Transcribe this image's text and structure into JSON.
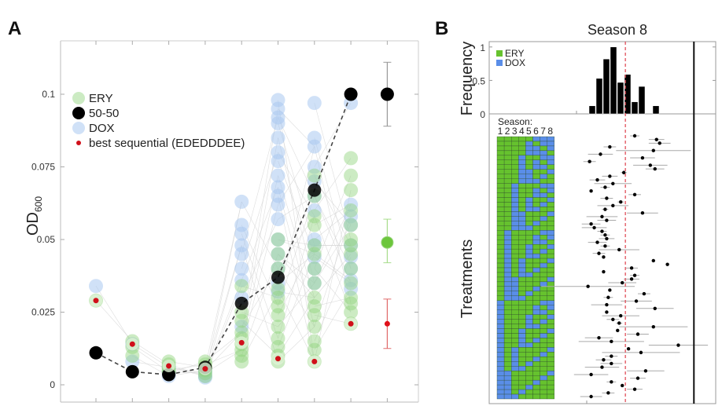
{
  "chart_data": [
    {
      "panel": "A",
      "type": "scatter",
      "ylabel": "OD",
      "ylabel_sub": "600",
      "yticks": [
        "0",
        "0.025",
        "0.05",
        "0.075",
        "0.1"
      ],
      "ytick_values": [
        0,
        0.025,
        0.05,
        0.075,
        0.1
      ],
      "ylim": [
        -0.003,
        0.12
      ],
      "n_positions": 9,
      "colors": {
        "ery": "#8fd37a",
        "dox": "#a9c8f0",
        "fifty": "#000000",
        "best": "#d0101a",
        "grey_line": "#cfcfcf"
      },
      "legend": [
        {
          "key": "ery",
          "label": "ERY"
        },
        {
          "key": "fifty",
          "label": "50-50"
        },
        {
          "key": "dox",
          "label": "DOX"
        },
        {
          "key": "best",
          "label": "best sequential (EDEDDDEE)"
        }
      ],
      "fifty_fifty": [
        0.011,
        0.0045,
        0.0035,
        0.006,
        0.028,
        0.037,
        0.067,
        0.1
      ],
      "best_sequential": [
        0.029,
        0.014,
        0.0065,
        0.0055,
        0.0145,
        0.009,
        0.008,
        0.021
      ],
      "ery_points": [
        [
          0.029
        ],
        [
          0.015,
          0.013,
          0.01
        ],
        [
          0.008,
          0.007,
          0.006,
          0.005,
          0.0045
        ],
        [
          0.008,
          0.007,
          0.006,
          0.005,
          0.004,
          0.003
        ],
        [
          0.034,
          0.025,
          0.022,
          0.018,
          0.016,
          0.014,
          0.012,
          0.01,
          0.008
        ],
        [
          0.05,
          0.045,
          0.04,
          0.033,
          0.03,
          0.027,
          0.024,
          0.02,
          0.016,
          0.013,
          0.01,
          0.008
        ],
        [
          0.072,
          0.065,
          0.058,
          0.055,
          0.048,
          0.045,
          0.04,
          0.035,
          0.03,
          0.027,
          0.024,
          0.02,
          0.015,
          0.012,
          0.008
        ],
        [
          0.078,
          0.072,
          0.067,
          0.06,
          0.055,
          0.05,
          0.048,
          0.045,
          0.04,
          0.035,
          0.03,
          0.028,
          0.025,
          0.021
        ]
      ],
      "dox_points": [
        [
          0.034
        ],
        [
          0.014,
          0.008
        ],
        [
          0.006,
          0.004,
          0.003
        ],
        [
          0.005,
          0.004,
          0.003,
          0.0025
        ],
        [
          0.063,
          0.055,
          0.052,
          0.048,
          0.045,
          0.04,
          0.036,
          0.03,
          0.02
        ],
        [
          0.098,
          0.095,
          0.092,
          0.09,
          0.085,
          0.08,
          0.077,
          0.072,
          0.068,
          0.065,
          0.062,
          0.057,
          0.05,
          0.045,
          0.04,
          0.035,
          0.032
        ],
        [
          0.097,
          0.085,
          0.082,
          0.075,
          0.07,
          0.065,
          0.06,
          0.05,
          0.048,
          0.044,
          0.04,
          0.035
        ],
        [
          0.097,
          0.062,
          0.058,
          0.055,
          0.048,
          0.044,
          0.04,
          0.036,
          0.033
        ]
      ],
      "summary": [
        {
          "key": "fifty",
          "mean": 0.1,
          "low": 0.089,
          "high": 0.111
        },
        {
          "key": "ery",
          "mean": 0.049,
          "low": 0.042,
          "high": 0.057
        },
        {
          "key": "best",
          "mean": 0.021,
          "low": 0.0125,
          "high": 0.0295
        }
      ]
    },
    {
      "panel": "B",
      "type": "bar",
      "title": "Season 8",
      "ylabel": "Frequency",
      "yticks": [
        "0",
        "0.5",
        "1"
      ],
      "ytick_values": [
        0,
        0.5,
        1
      ],
      "ylim": [
        0,
        1.08
      ],
      "legend": [
        {
          "key": "ery",
          "label": "ERY",
          "color": "#66c22e"
        },
        {
          "key": "dox",
          "label": "DOX",
          "color": "#5a8ee8"
        }
      ],
      "histogram_values": [
        0.12,
        0.53,
        0.82,
        1.0,
        0.47,
        0.59,
        0.18,
        0.41,
        0,
        0.12
      ],
      "reference_line_color": "#e0505a"
    },
    {
      "panel": "B-lower",
      "type": "heatmap",
      "ylabel": "Treatments",
      "grid_label": "Season:",
      "season_labels": [
        "1",
        "2",
        "3",
        "4",
        "5",
        "6",
        "7",
        "8"
      ],
      "colors": {
        "E": "#66c22e",
        "D": "#5a8ee8"
      },
      "treatments": [
        "EEEEEDDD",
        "EEEEDEDD",
        "EEEEDDED",
        "EEEEDDDE",
        "EEEDEEDD",
        "EEEDEDED",
        "EEEDEDDE",
        "EEEDDEED",
        "EEEDDEDE",
        "EEEDDDEE",
        "EEDEEEDD",
        "EEDEEDED",
        "EEDEEDDE",
        "EEDEDEED",
        "EEDEDEDE",
        "EEDEDDEE",
        "EEDDEEED",
        "EEDDEEDE",
        "EEDDEDEE",
        "EEDDDEEE",
        "EDEEEEDD",
        "EDEEEDED",
        "EDEEEDDE",
        "EDEEDEED",
        "EDEEDEDE",
        "EDEEDDEE",
        "EDEDEEED",
        "EDEDEEDE",
        "EDEDEDEE",
        "EDEDDEEE",
        "EDDEEEED",
        "EDDEEEDE",
        "EDDEEDEE",
        "EDDEDEEE",
        "EDDDEEEE",
        "DEEEEEDD",
        "DEEEEDED",
        "DEEEEDDE",
        "DEEEDEED",
        "DEEEDEDE",
        "DEEEDDEE",
        "DEEDEEED",
        "DEEDEEDE",
        "DEEDEDEE",
        "DEEDDEEE",
        "DEDEEEED",
        "DEDEEEDE",
        "DEDEEDEE",
        "DEDEDEEE",
        "DEDDEEEE",
        "DDEEEEED",
        "DDEEEEDE",
        "DDEEEDEE",
        "DDEEDEEE",
        "DDEDEEEE",
        "DDDEEEEE"
      ]
    },
    {
      "panel": "B-right",
      "type": "scatter",
      "x_range": [
        0,
        1
      ],
      "reference_x": 0.42,
      "black_line_x": 0.86,
      "points": [
        [
          0.48,
          0.03
        ],
        [
          0.62,
          0.05
        ],
        [
          0.64,
          0.07
        ],
        [
          0.32,
          0.04
        ],
        [
          0.6,
          0.24
        ],
        [
          0.26,
          0.08
        ],
        [
          0.53,
          0.08
        ],
        [
          0.19,
          0.04
        ],
        [
          0.58,
          0.11
        ],
        [
          0.61,
          0.06
        ],
        [
          0.41,
          0.02
        ],
        [
          0.32,
          0.05
        ],
        [
          0.24,
          0.05
        ],
        [
          0.34,
          0.12
        ],
        [
          0.29,
          0.03
        ],
        [
          0.2,
          0.0
        ],
        [
          0.48,
          0.04
        ],
        [
          0.3,
          0.04
        ],
        [
          0.39,
          0.02
        ],
        [
          0.34,
          0.1
        ],
        [
          0.29,
          0.02
        ],
        [
          0.53,
          0.1
        ],
        [
          0.27,
          0.1
        ],
        [
          0.3,
          0.06
        ],
        [
          0.2,
          0.06
        ],
        [
          0.22,
          0.08
        ],
        [
          0.27,
          0.03
        ],
        [
          0.29,
          0.03
        ],
        [
          0.3,
          0.05
        ],
        [
          0.24,
          0.06
        ],
        [
          0.29,
          0.03
        ],
        [
          0.38,
          0.13
        ],
        [
          0.25,
          0.04
        ],
        [
          0.28,
          0.0
        ],
        [
          0.6,
          0.0
        ],
        [
          0.69,
          0.0
        ],
        [
          0.46,
          0.04
        ],
        [
          0.28,
          0.0
        ],
        [
          0.48,
          0.03
        ],
        [
          0.46,
          0.05
        ],
        [
          0.4,
          0.09
        ],
        [
          0.18,
          0.3
        ],
        [
          0.32,
          0.0
        ],
        [
          0.54,
          0.04
        ],
        [
          0.31,
          0.03
        ],
        [
          0.49,
          0.1
        ],
        [
          0.3,
          0.1
        ],
        [
          0.61,
          0.12
        ],
        [
          0.3,
          0.0
        ],
        [
          0.39,
          0.12
        ],
        [
          0.34,
          0.04
        ],
        [
          0.38,
          0.02
        ],
        [
          0.6,
          0.22
        ],
        [
          0.37,
          0.0
        ],
        [
          0.5,
          0.07
        ],
        [
          0.25,
          0.09
        ],
        [
          0.33,
          0.21
        ],
        [
          0.76,
          0.19
        ],
        [
          0.44,
          0.01
        ],
        [
          0.52,
          0.25
        ],
        [
          0.33,
          0.04
        ],
        [
          0.28,
          0.05
        ],
        [
          0.33,
          0.07
        ],
        [
          0.27,
          0.11
        ],
        [
          0.55,
          0.12
        ],
        [
          0.2,
          0.11
        ],
        [
          0.5,
          0.05
        ],
        [
          0.33,
          0.03
        ],
        [
          0.4,
          0.01
        ],
        [
          0.48,
          0.05
        ],
        [
          0.31,
          0.04
        ],
        [
          0.2,
          0.07
        ]
      ]
    }
  ],
  "labels": {
    "panel_a": "A",
    "panel_b": "B",
    "od_main": "OD",
    "od_sub": "600",
    "season_title": "Season 8",
    "frequency": "Frequency",
    "treatments": "Treatments",
    "season_grid": "Season:",
    "season_digits": "12345678"
  }
}
